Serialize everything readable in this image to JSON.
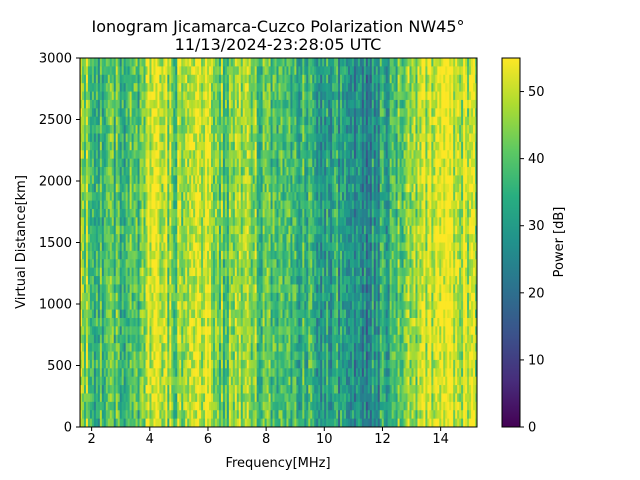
{
  "chart_data": {
    "type": "heatmap",
    "title_line1": "Ionogram Jicamarca-Cuzco Polarization NW45°",
    "title_line2": "11/13/2024-23:28:05 UTC",
    "xlabel": "Frequency[MHz]",
    "ylabel": "Virtual Distance[km]",
    "xlim": [
      1.6,
      15.25
    ],
    "ylim": [
      0,
      3000
    ],
    "xticks": [
      2,
      4,
      6,
      8,
      10,
      12,
      14
    ],
    "yticks": [
      0,
      500,
      1000,
      1500,
      2000,
      2500,
      3000
    ],
    "colorbar": {
      "label": "Power [dB]",
      "min": 0,
      "max": 55,
      "ticks": [
        0,
        10,
        20,
        30,
        40,
        50
      ],
      "colormap": "viridis"
    },
    "description_profile": {
      "frequency_mhz": [
        1.6,
        2.0,
        2.5,
        3.0,
        3.5,
        3.8,
        4.0,
        4.5,
        4.9,
        5.2,
        5.6,
        6.0,
        6.5,
        7.0,
        7.5,
        8.0,
        8.5,
        9.0,
        9.5,
        10.0,
        10.5,
        11.0,
        11.5,
        12.0,
        12.5,
        13.0,
        13.5,
        14.0,
        14.5,
        15.25
      ],
      "typical_power_db": [
        44,
        40,
        38,
        37,
        36,
        44,
        52,
        51,
        41,
        48,
        52,
        51,
        42,
        45,
        42,
        38,
        34,
        33,
        36,
        32,
        30,
        26,
        25,
        32,
        38,
        45,
        52,
        53,
        51,
        50
      ]
    }
  }
}
